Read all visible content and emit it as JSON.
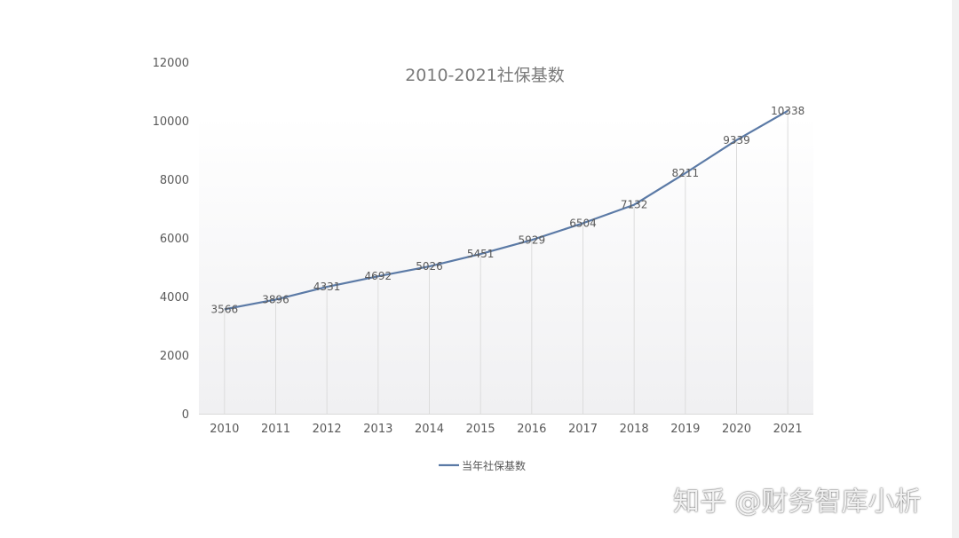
{
  "chart_data": {
    "type": "line",
    "title": "2010-2021社保基数",
    "xlabel": "",
    "ylabel": "",
    "categories": [
      "2010",
      "2011",
      "2012",
      "2013",
      "2014",
      "2015",
      "2016",
      "2017",
      "2018",
      "2019",
      "2020",
      "2021"
    ],
    "series": [
      {
        "name": "当年社保基数",
        "values": [
          3566,
          3896,
          4331,
          4692,
          5026,
          5451,
          5929,
          6504,
          7132,
          8211,
          9339,
          10338
        ]
      }
    ],
    "ylim": [
      0,
      12000
    ],
    "yticks": [
      "0",
      "2000",
      "4000",
      "6000",
      "8000",
      "10000",
      "12000"
    ],
    "grid": false,
    "drop_lines": true,
    "data_labels": true,
    "legend_position": "bottom",
    "colors": {
      "line": "#5b7aa6",
      "drop_line": "#dcdcdc",
      "axis": "#d9d9d9",
      "text": "#595959",
      "title": "#7a7a7a",
      "plot_gradient_top": "#ffffff",
      "plot_gradient_bottom": "#f0f0f2"
    }
  },
  "watermark": {
    "text": "知乎 @财务智库小析"
  }
}
